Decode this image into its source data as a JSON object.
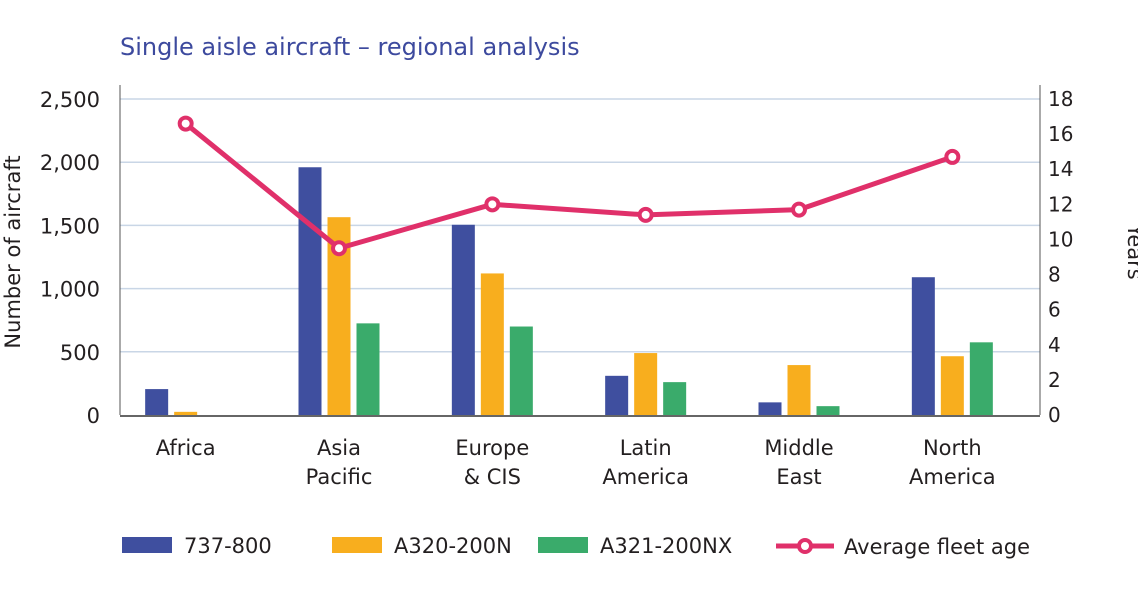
{
  "chart_data": {
    "type": "bar+line",
    "title": "Single aisle aircraft – regional analysis",
    "categories": [
      [
        "Africa"
      ],
      [
        "Asia",
        "Pacific"
      ],
      [
        "Europe",
        "& CIS"
      ],
      [
        "Latin",
        "America"
      ],
      [
        "Middle",
        "East"
      ],
      [
        "North",
        "America"
      ]
    ],
    "ylabel": "Number of aircraft",
    "y2label": "Years",
    "ylim": [
      0,
      2500
    ],
    "yticks": [
      "0",
      "500",
      "1,000",
      "1,500",
      "2,000",
      "2,500"
    ],
    "y2lim": [
      0,
      18
    ],
    "y2ticks": [
      "0",
      "2",
      "4",
      "6",
      "8",
      "10",
      "12",
      "14",
      "16",
      "18"
    ],
    "grid": true,
    "legend_position": "bottom",
    "series": [
      {
        "name": "737-800",
        "type": "bar",
        "color": "#3f4f9f",
        "values": [
          205,
          1960,
          1505,
          310,
          100,
          1090
        ]
      },
      {
        "name": "A320-200N",
        "type": "bar",
        "color": "#f8ae1e",
        "values": [
          25,
          1565,
          1120,
          490,
          395,
          465
        ]
      },
      {
        "name": "A321-200NX",
        "type": "bar",
        "color": "#3aab6b",
        "values": [
          0,
          725,
          700,
          260,
          70,
          575
        ]
      },
      {
        "name": "Average fleet age",
        "type": "line",
        "axis": "right",
        "color": "#e0306a",
        "values": [
          16.6,
          9.5,
          12.0,
          11.4,
          11.7,
          14.7
        ]
      }
    ]
  },
  "colors": {
    "title": "#3d4a9e",
    "grid": "#c9d6e6"
  }
}
